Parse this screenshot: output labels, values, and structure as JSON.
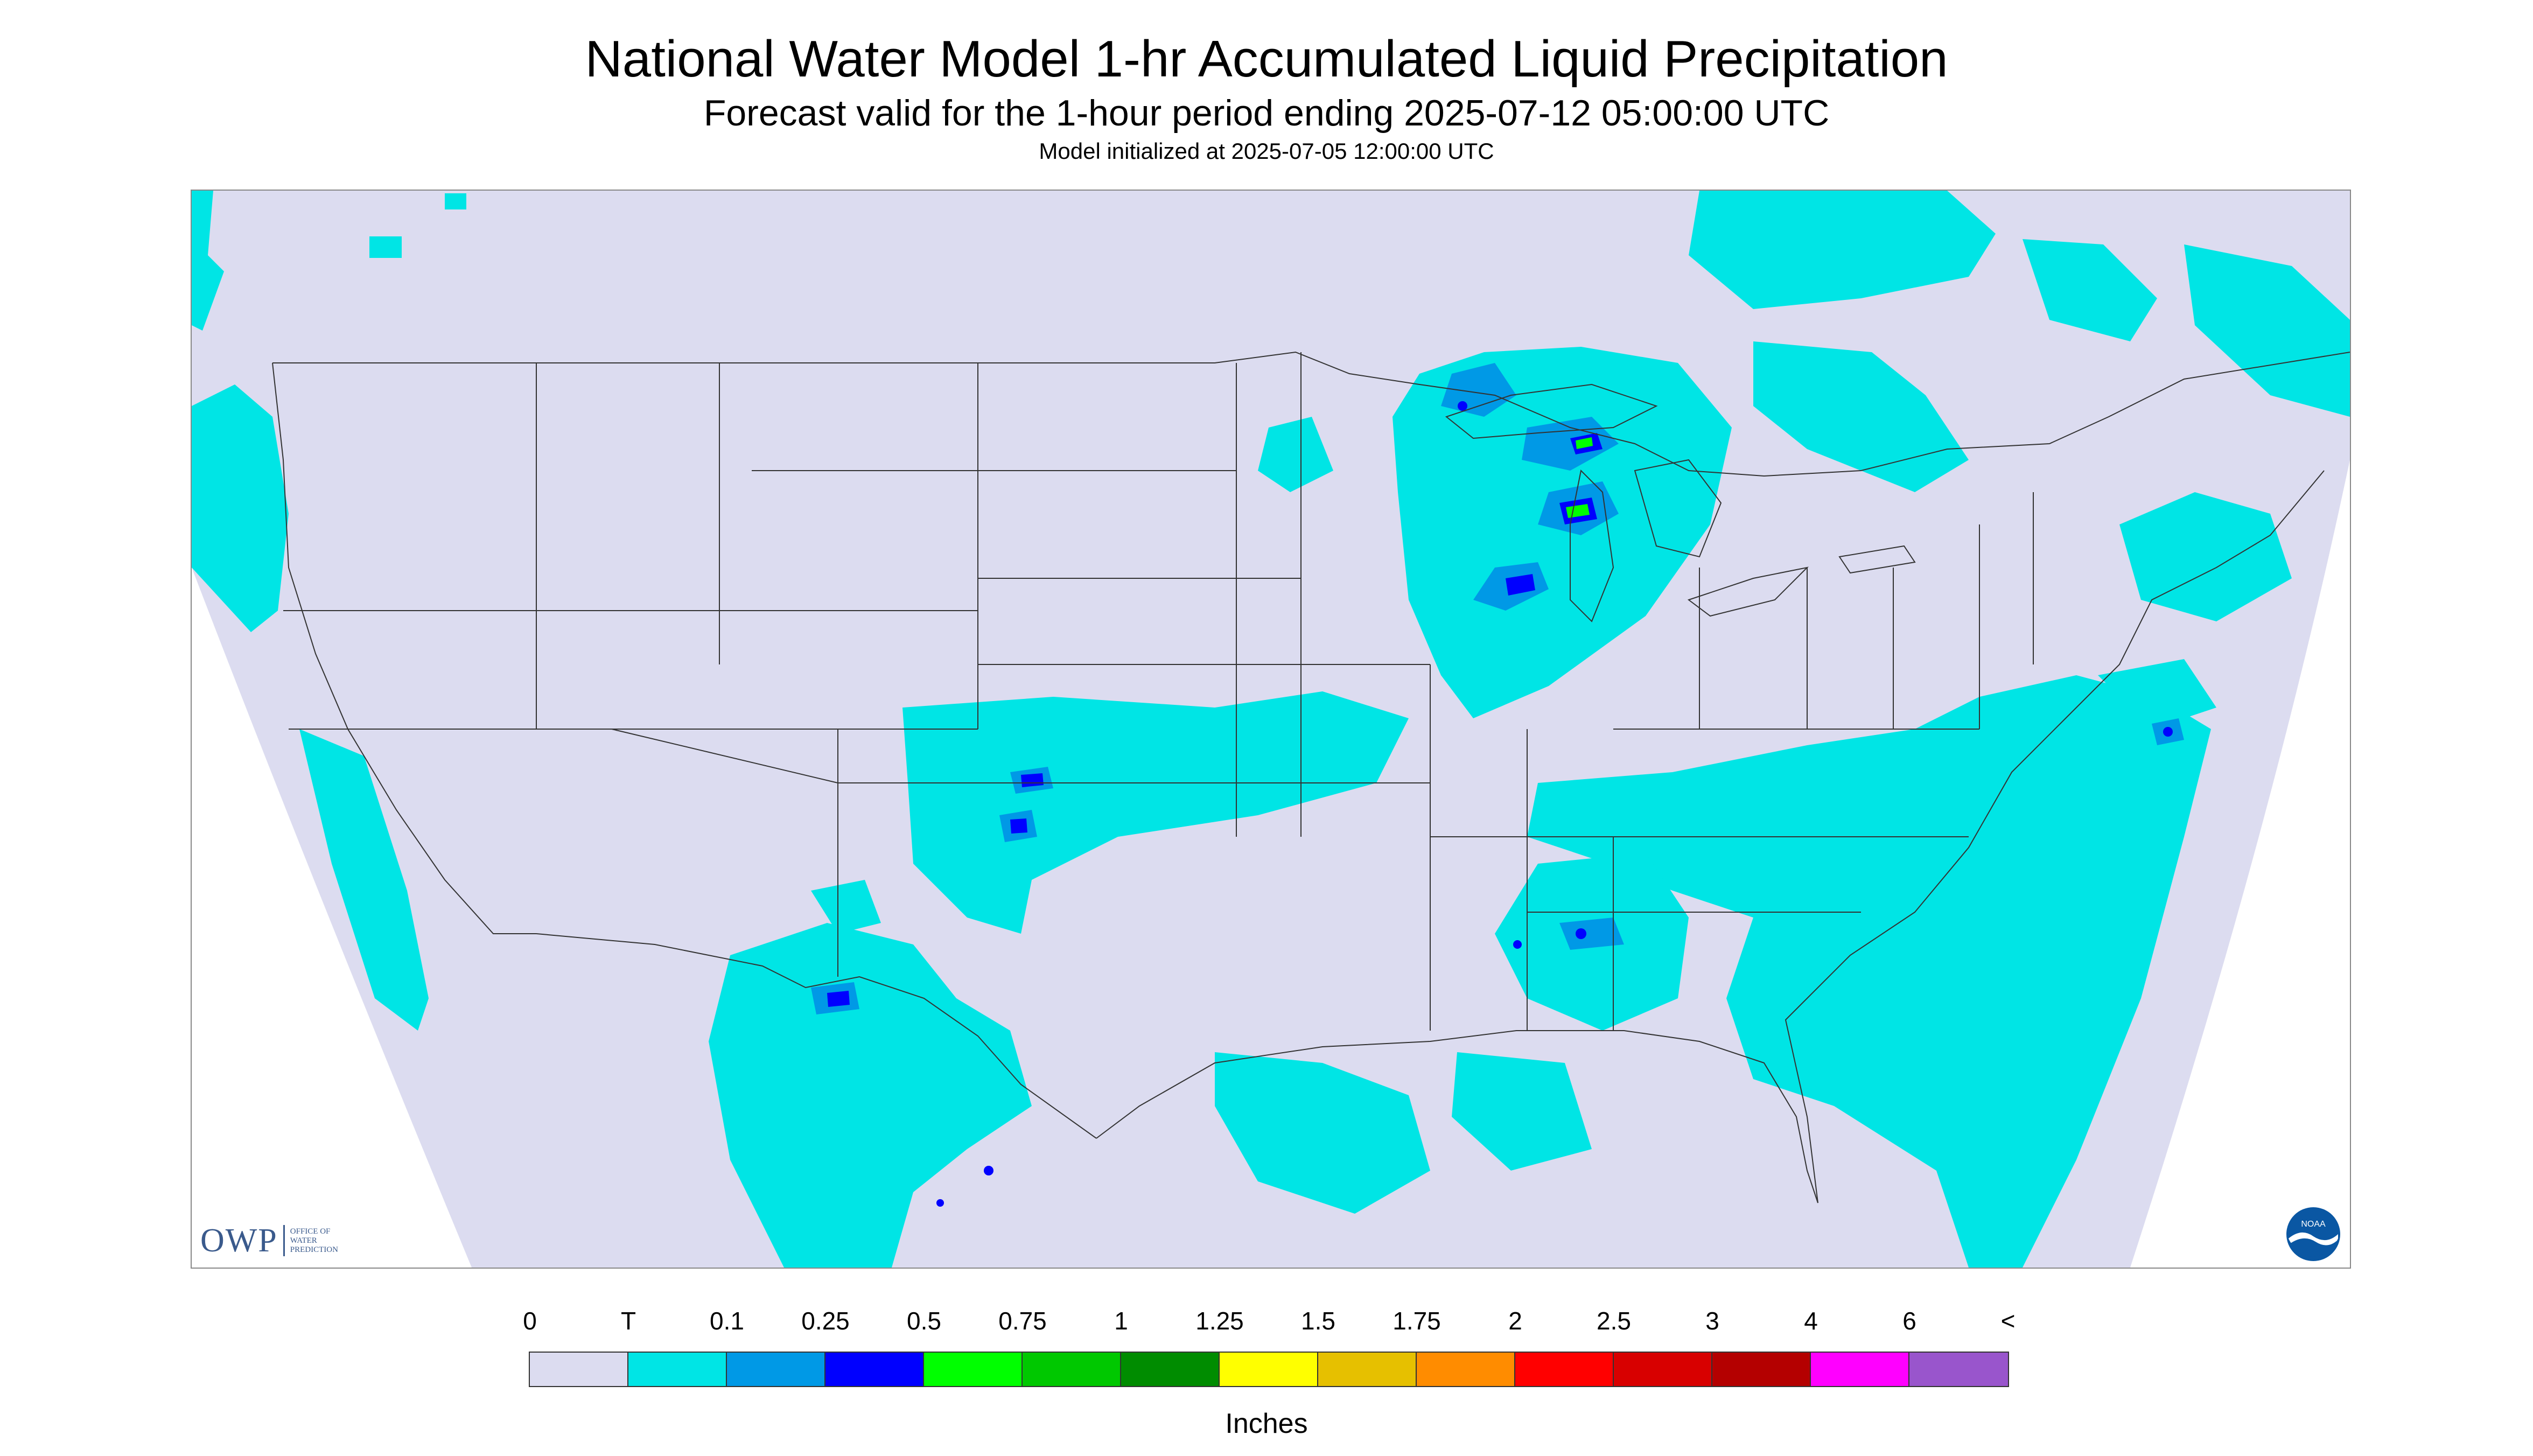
{
  "header": {
    "title": "National Water Model 1-hr Accumulated Liquid Precipitation",
    "subtitle": "Forecast valid for the 1-hour period ending 2025-07-12 05:00:00 UTC",
    "init": "Model initialized at 2025-07-05 12:00:00 UTC"
  },
  "logos": {
    "owp_abbr": "OWP",
    "owp_lines": [
      "OFFICE OF",
      "WATER",
      "PREDICTION"
    ],
    "noaa_text": "NOAA"
  },
  "legend": {
    "labels": [
      "0",
      "T",
      "0.1",
      "0.25",
      "0.5",
      "0.75",
      "1",
      "1.25",
      "1.5",
      "1.75",
      "2",
      "2.5",
      "3",
      "4",
      "6",
      "<"
    ],
    "colors": [
      "#dcdcf0",
      "#00e5e5",
      "#0099e6",
      "#0000ff",
      "#00ff00",
      "#00c800",
      "#008c00",
      "#ffff00",
      "#e6c000",
      "#ff8c00",
      "#ff0000",
      "#d80000",
      "#b40000",
      "#ff00ff",
      "#9955cc"
    ],
    "units": "Inches"
  },
  "map": {
    "background_color": "#dcdcf0",
    "precip_colors": {
      "trace": "#00e5e5",
      "light": "#0099e6",
      "moderate": "#0000ff",
      "heavy": "#00ff00"
    },
    "boundary_color": "#333333"
  }
}
